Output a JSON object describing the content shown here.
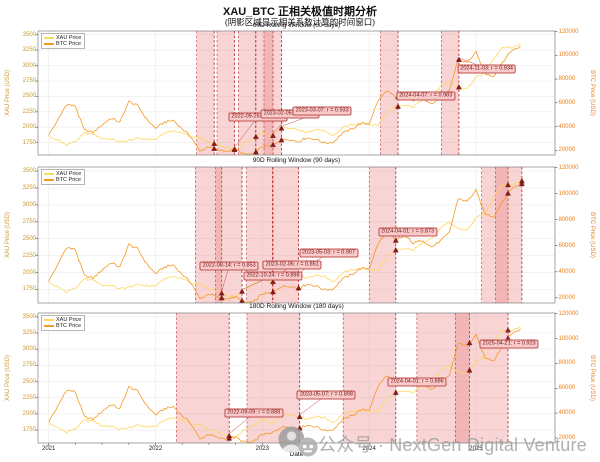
{
  "page": {
    "title": "XAU_BTC 正相关极值时期分析",
    "subtitle": "(阴影区域显示相关系数计算的时间窗口)"
  },
  "watermark": {
    "text": "公众号 · NextGen Digital Venture",
    "icons": [
      "user-avatar-icon",
      "mascot-icon"
    ]
  },
  "chart_data": {
    "type": "line",
    "title": "XAU_BTC 正相关极值时期分析",
    "subtitle": "(阴影区域显示相关系数计算的时间窗口)",
    "xlabel": "Date",
    "x_ticks": [
      2021,
      2022,
      2023,
      2024,
      2025
    ],
    "x_range": [
      2020.9,
      2025.74
    ],
    "grid": true,
    "legend_position": "upper-left",
    "legend": [
      {
        "label": "XAU Price",
        "color": "#ffd75e"
      },
      {
        "label": "BTC Price",
        "color": "#f59a23"
      }
    ],
    "left_axis": {
      "label": "XAU Price (USD)",
      "color": "#c9992e",
      "ticks": [
        1750,
        2000,
        2250,
        2500,
        2750,
        3000,
        3250,
        3500
      ],
      "range": [
        1550,
        3560
      ]
    },
    "right_axis": {
      "label": "BTC Price (USD)",
      "color": "#e8821e",
      "ticks": [
        20000,
        40000,
        60000,
        80000,
        100000,
        120000
      ],
      "range": [
        16000,
        120500
      ]
    },
    "sampling": {
      "x_start": 2021.0,
      "x_step_years": 0.0833333
    },
    "series": [
      {
        "name": "XAU Price",
        "axis": "left",
        "color": "#ffd75e",
        "values": [
          1850,
          1790,
          1715,
          1770,
          1900,
          1890,
          1815,
          1812,
          1758,
          1785,
          1820,
          1806,
          1800,
          1905,
          1942,
          1912,
          1848,
          1828,
          1762,
          1712,
          1668,
          1640,
          1752,
          1812,
          1928,
          1832,
          1980,
          1998,
          1962,
          1920,
          1962,
          1942,
          1866,
          1992,
          2038,
          2062,
          2042,
          2032,
          2230,
          2330,
          2352,
          2330,
          2448,
          2502,
          2652,
          2742,
          2652,
          2622,
          2802,
          2882,
          3122,
          3302,
          3288,
          3352
        ]
      },
      {
        "name": "BTC Price",
        "axis": "right",
        "color": "#f59a23",
        "values": [
          33000,
          45000,
          58800,
          57000,
          37000,
          35000,
          41500,
          47000,
          43500,
          61000,
          57500,
          46200,
          38500,
          43500,
          45200,
          38000,
          31500,
          19000,
          23300,
          20000,
          19400,
          20500,
          16500,
          16600,
          23100,
          23500,
          28400,
          29300,
          27200,
          30500,
          29200,
          26100,
          26900,
          34500,
          37700,
          42300,
          42600,
          61500,
          70500,
          64000,
          67500,
          61800,
          64500,
          59000,
          63500,
          70000,
          96500,
          94000,
          102500,
          84500,
          82500,
          94500,
          104000,
          107500
        ]
      }
    ],
    "subplots": [
      {
        "title": "60D Rolling Window (60 days)",
        "window_days": 60,
        "window_years": 0.164,
        "extremes": [
          {
            "date": "2022-07-23",
            "x": 2022.55
          },
          {
            "date": "2022-09-26",
            "x": 2022.74,
            "r": 0.986,
            "label": "2022-09-26: r = 0.986",
            "box_x": 2022.96,
            "box_y": 0.69
          },
          {
            "date": "2022-12-10",
            "x": 2022.94
          },
          {
            "date": "2023-02-05",
            "x": 2023.1,
            "r": 0.931,
            "label": "2023-02-05: r = 0.931",
            "box_x": 2023.26,
            "box_y": 0.672
          },
          {
            "date": "2023-03-07",
            "x": 2023.18,
            "r": 0.933,
            "label": "2023-03-07: r = 0.933",
            "box_x": 2023.56,
            "box_y": 0.648
          },
          {
            "date": "2024-04-07",
            "x": 2024.27,
            "r": 0.983,
            "label": "2024-04-07: r = 0.983",
            "box_x": 2024.53,
            "box_y": 0.525
          },
          {
            "date": "2024-11-03",
            "x": 2024.84,
            "r": 0.934,
            "label": "2024-11-03: r = 0.934",
            "box_x": 2025.1,
            "box_y": 0.303
          }
        ]
      },
      {
        "title": "90D Rolling Window (90 days)",
        "window_days": 90,
        "window_years": 0.247,
        "extremes": [
          {
            "date": "2022-08-14",
            "x": 2022.62,
            "r": 0.853,
            "label": "2022-08-14: r = 0.853",
            "box_x": 2022.69,
            "box_y": 0.726
          },
          {
            "date": "2022-10-24",
            "x": 2022.81,
            "r": 0.898,
            "label": "2022-10-24: r = 0.898",
            "box_x": 2023.1,
            "box_y": 0.8
          },
          {
            "date": "2023-02-06",
            "x": 2023.1,
            "r": 0.851,
            "label": "2023-02-06: r = 0.851",
            "box_x": 2023.28,
            "box_y": 0.719
          },
          {
            "date": "2023-05-03",
            "x": 2023.34,
            "r": 0.907,
            "label": "2023-05-03: r = 0.907",
            "box_x": 2023.62,
            "box_y": 0.63
          },
          {
            "date": "2024-04-01",
            "x": 2024.25,
            "r": 0.873,
            "label": "2024-04-01: r = 0.873",
            "box_x": 2024.36,
            "box_y": 0.481
          },
          {
            "date": "2025-04-20",
            "x": 2025.3
          },
          {
            "date": "2025-06-05",
            "x": 2025.43
          }
        ]
      },
      {
        "title": "180D Rolling Window (180 days)",
        "window_days": 180,
        "window_years": 0.493,
        "extremes": [
          {
            "date": "2022-09-09",
            "x": 2022.69,
            "r": 0.888,
            "label": "2022-09-09: r = 0.888",
            "box_x": 2022.92,
            "box_y": 0.772
          },
          {
            "date": "2023-05-07",
            "x": 2023.35,
            "r": 0.898,
            "label": "2023-05-07: r = 0.898",
            "box_x": 2023.6,
            "box_y": 0.63
          },
          {
            "date": "2024-04-01",
            "x": 2024.25,
            "r": 0.886,
            "label": "2024-04-01: r = 0.886",
            "box_x": 2024.45,
            "box_y": 0.528
          },
          {
            "date": "2024-12-10",
            "x": 2024.94
          },
          {
            "date": "2025-04-21",
            "x": 2025.3,
            "r": 0.923,
            "label": "2025-04-21: r = 0.923",
            "box_x": 2025.31,
            "box_y": 0.236
          }
        ]
      }
    ],
    "band_color": "rgba(231,112,112,0.30)",
    "extreme_line_color": "#b22222",
    "marker_color": "#8b1a1a",
    "annotation_bg": "#f8caca",
    "annotation_border": "#c0504d"
  }
}
